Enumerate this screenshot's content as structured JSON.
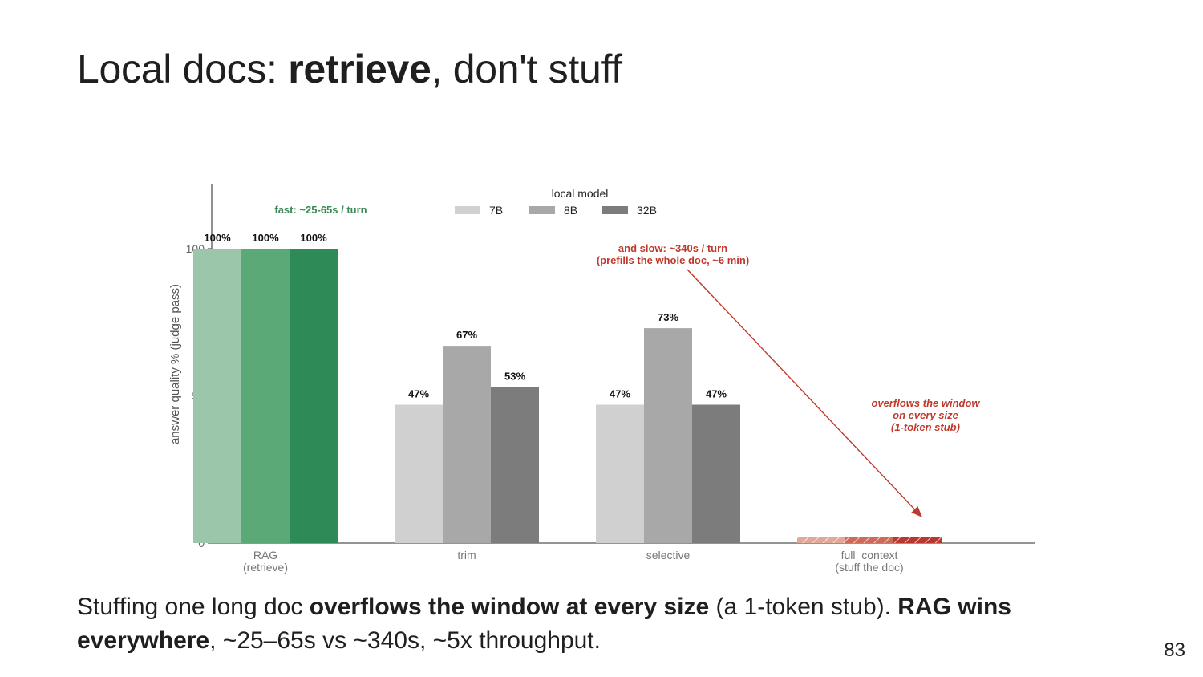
{
  "slide": {
    "title_pre": "Local docs: ",
    "title_bold": "retrieve",
    "title_post": ", don't stuff",
    "caption": [
      {
        "text": "Stuffing one long doc ",
        "bold": false
      },
      {
        "text": "overflows the window at every size",
        "bold": true
      },
      {
        "text": " (a 1-token stub). ",
        "bold": false
      },
      {
        "text": "RAG wins everywhere",
        "bold": true
      },
      {
        "text": ", ~25–65s vs ~340s, ~5x throughput.",
        "bold": false
      }
    ],
    "page_number": "83"
  },
  "chart_data": {
    "type": "bar",
    "title": "",
    "xlabel": "",
    "ylabel": "answer quality %  (judge pass)",
    "ylim": [
      0,
      120
    ],
    "yticks": [
      0,
      50,
      100
    ],
    "grid": false,
    "legend": {
      "title": "local model",
      "position": "top",
      "entries": [
        "7B",
        "8B",
        "32B"
      ]
    },
    "categories": [
      {
        "label": "RAG",
        "sublabel": "(retrieve)"
      },
      {
        "label": "trim",
        "sublabel": ""
      },
      {
        "label": "selective",
        "sublabel": ""
      },
      {
        "label": "full_context",
        "sublabel": "(stuff the doc)"
      }
    ],
    "series": [
      {
        "name": "7B",
        "values": [
          100,
          47,
          47,
          2
        ]
      },
      {
        "name": "8B",
        "values": [
          100,
          67,
          73,
          2
        ]
      },
      {
        "name": "32B",
        "values": [
          100,
          53,
          47,
          2
        ]
      }
    ],
    "data_labels": [
      [
        "100%",
        "100%",
        "100%"
      ],
      [
        "47%",
        "67%",
        "53%"
      ],
      [
        "47%",
        "73%",
        "47%"
      ],
      [
        "",
        "",
        ""
      ]
    ],
    "colors": {
      "neutral": [
        "#d0d0d0",
        "#a8a8a8",
        "#7c7c7c"
      ],
      "rag": [
        "#9cc6aa",
        "#5aa976",
        "#2e8a57"
      ],
      "overflow": [
        "#e0a898",
        "#cf6a5b",
        "#b8372f"
      ],
      "fast_text": "#3a8a55",
      "warn_text": "#c0392b",
      "axis": "#555555"
    },
    "annotations": {
      "fast": "fast: ~25-65s / turn",
      "slow_line1": "and slow: ~340s / turn",
      "slow_line2": "(prefills the whole doc, ~6 min)",
      "overflow_lines": [
        "overflows the window",
        "on every size",
        "(1-token stub)"
      ]
    }
  }
}
